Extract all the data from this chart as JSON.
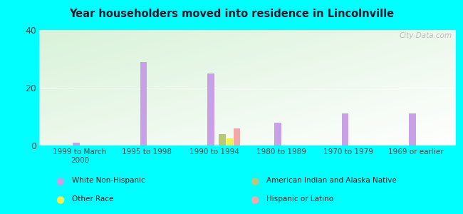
{
  "title": "Year householders moved into residence in Lincolnville",
  "categories": [
    "1999 to March\n2000",
    "1995 to 1998",
    "1990 to 1994",
    "1980 to 1989",
    "1970 to 1979",
    "1969 or earlier"
  ],
  "series": {
    "White Non-Hispanic": [
      1,
      29,
      25,
      8,
      11,
      11
    ],
    "American Indian and Alaska Native": [
      0,
      0,
      4,
      0,
      0,
      0
    ],
    "Other Race": [
      0,
      0,
      2.5,
      0,
      0,
      0
    ],
    "Hispanic or Latino": [
      0,
      0,
      6,
      0,
      0,
      0
    ]
  },
  "colors": {
    "White Non-Hispanic": "#c8a0e8",
    "American Indian and Alaska Native": "#b8c878",
    "Other Race": "#f0f050",
    "Hispanic or Latino": "#f0a8a8"
  },
  "ylim": [
    0,
    40
  ],
  "yticks": [
    0,
    20,
    40
  ],
  "background_outer": "#00ffff",
  "title_color": "#1a1a2e",
  "watermark": "City-Data.com",
  "bar_width": 0.1,
  "legend_left_col": [
    "White Non-Hispanic",
    "Other Race"
  ],
  "legend_right_col": [
    "American Indian and Alaska Native",
    "Hispanic or Latino"
  ]
}
